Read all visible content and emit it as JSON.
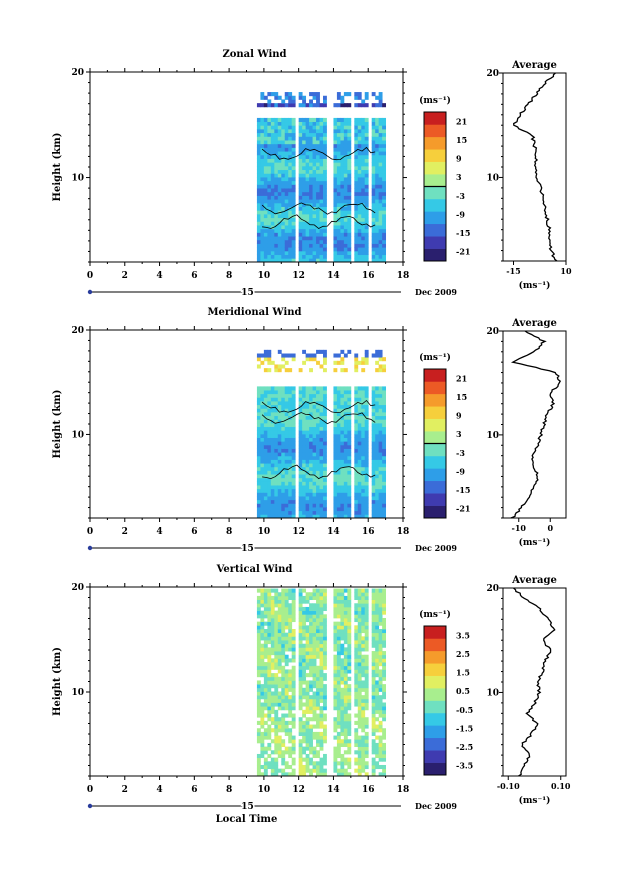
{
  "chart_data": [
    {
      "type": "heatmap",
      "title": "Zonal Wind",
      "ylabel": "Height (km)",
      "xlim": [
        0,
        18
      ],
      "ylim": [
        2,
        20
      ],
      "xticks": [
        "0",
        "2",
        "4",
        "6",
        "8",
        "10",
        "12",
        "14",
        "16",
        "18"
      ],
      "yticks": [
        {
          "v": 10,
          "l": "10"
        },
        {
          "v": 20,
          "l": "20"
        }
      ],
      "date_bar": {
        "day": "15",
        "month_year": "Dec 2009"
      },
      "colorbar": {
        "unit": "(ms⁻¹)",
        "range": [
          -24,
          24
        ],
        "ticks": [
          "21",
          "15",
          "9",
          "3",
          "-3",
          "-9",
          "-15",
          "-21"
        ],
        "tick_values": [
          21,
          15,
          9,
          3,
          -3,
          -9,
          -15,
          -21
        ]
      },
      "data_extent": {
        "x": [
          9.6,
          16.8
        ],
        "y": [
          2,
          17.8
        ]
      },
      "gaps": [
        [
          11.75,
          12.05
        ],
        [
          13.55,
          13.9
        ],
        [
          14.95,
          15.25
        ],
        [
          15.95,
          16.25
        ]
      ],
      "profile": {
        "title": "Average",
        "xticks": [
          {
            "v": -15,
            "l": "-15"
          },
          {
            "v": 10,
            "l": "10"
          }
        ],
        "xlim": [
          -20,
          10
        ],
        "unit": "(ms⁻¹)",
        "heights": [
          2,
          3,
          4,
          5,
          6,
          7,
          8,
          9,
          10,
          11,
          12,
          13,
          14,
          15,
          16,
          17,
          18,
          19,
          20
        ],
        "values": [
          5,
          3,
          2,
          2,
          1,
          0,
          -1,
          -2,
          -4,
          -5,
          -4,
          -5,
          -6,
          -15,
          -12,
          -8,
          -4,
          0,
          5
        ]
      }
    },
    {
      "type": "heatmap",
      "title": "Meridional Wind",
      "ylabel": "Height (km)",
      "xlim": [
        0,
        18
      ],
      "ylim": [
        2,
        20
      ],
      "xticks": [
        "0",
        "2",
        "4",
        "6",
        "8",
        "10",
        "12",
        "14",
        "16",
        "18"
      ],
      "yticks": [
        {
          "v": 10,
          "l": "10"
        },
        {
          "v": 20,
          "l": "20"
        }
      ],
      "date_bar": {
        "day": "15",
        "month_year": "Dec 2009"
      },
      "colorbar": {
        "unit": "(ms⁻¹)",
        "range": [
          -24,
          24
        ],
        "ticks": [
          "21",
          "15",
          "9",
          "3",
          "-3",
          "-9",
          "-15",
          "-21"
        ],
        "tick_values": [
          21,
          15,
          9,
          3,
          -3,
          -9,
          -15,
          -21
        ]
      },
      "data_extent": {
        "x": [
          9.6,
          16.8
        ],
        "y": [
          2,
          17.8
        ]
      },
      "gaps": [
        [
          11.75,
          12.05
        ],
        [
          13.55,
          13.9
        ],
        [
          14.95,
          15.25
        ],
        [
          15.95,
          16.25
        ]
      ],
      "profile": {
        "title": "Average",
        "xticks": [
          {
            "v": -10,
            "l": "-10"
          },
          {
            "v": 0,
            "l": "0"
          }
        ],
        "xlim": [
          -15,
          5
        ],
        "unit": "(ms⁻¹)",
        "heights": [
          2,
          3,
          4,
          5,
          6,
          7,
          8,
          9,
          10,
          11,
          12,
          13,
          14,
          15,
          16,
          17,
          18,
          19,
          20
        ],
        "values": [
          -12,
          -9,
          -7,
          -5,
          -4,
          -5,
          -6,
          -4,
          -3,
          -2,
          -1,
          1,
          0,
          3,
          2,
          -12,
          -5,
          -2,
          -8
        ]
      }
    },
    {
      "type": "heatmap",
      "title": "Vertical Wind",
      "ylabel": "Height (km)",
      "xlabel": "Local Time",
      "xlim": [
        0,
        18
      ],
      "ylim": [
        2,
        20
      ],
      "xticks": [
        "0",
        "2",
        "4",
        "6",
        "8",
        "10",
        "12",
        "14",
        "16",
        "18"
      ],
      "yticks": [
        {
          "v": 10,
          "l": "10"
        },
        {
          "v": 20,
          "l": "20"
        }
      ],
      "date_bar": {
        "day": "15",
        "month_year": "Dec 2009"
      },
      "colorbar": {
        "unit": "(ms⁻¹)",
        "range": [
          -4,
          4
        ],
        "ticks": [
          "3.5",
          "2.5",
          "1.5",
          "0.5",
          "-0.5",
          "-1.5",
          "-2.5",
          "-3.5"
        ],
        "tick_values": [
          3.5,
          2.5,
          1.5,
          0.5,
          -0.5,
          -1.5,
          -2.5,
          -3.5
        ]
      },
      "data_extent": {
        "x": [
          9.6,
          16.8
        ],
        "y": [
          2,
          19.8
        ]
      },
      "gaps": [
        [
          11.75,
          12.05
        ],
        [
          13.55,
          13.9
        ],
        [
          14.95,
          15.25
        ],
        [
          15.95,
          16.25
        ]
      ],
      "profile": {
        "title": "Average",
        "xticks": [
          {
            "v": -0.1,
            "l": "-0.10"
          },
          {
            "v": 0.1,
            "l": "0.10"
          }
        ],
        "xlim": [
          -0.12,
          0.12
        ],
        "unit": "(ms⁻¹)",
        "heights": [
          2,
          3,
          4,
          5,
          6,
          7,
          8,
          9,
          10,
          11,
          12,
          13,
          14,
          15,
          16,
          17,
          18,
          19,
          20
        ],
        "values": [
          -0.06,
          -0.04,
          -0.02,
          -0.05,
          -0.01,
          0.01,
          -0.03,
          0.0,
          0.02,
          0.01,
          0.03,
          0.04,
          0.06,
          0.03,
          0.08,
          0.05,
          0.02,
          -0.04,
          -0.08
        ]
      }
    }
  ],
  "colors": {
    "scale": [
      "#2a1f6e",
      "#3f3bb0",
      "#3b6cd8",
      "#2e9ee8",
      "#35c9e6",
      "#6fe0c0",
      "#a8ee8e",
      "#e1ef61",
      "#f6cf3c",
      "#f59b2b",
      "#ec5a25",
      "#c81f1f"
    ],
    "axis": "#000000",
    "date_marker": "#2a3d9c"
  }
}
